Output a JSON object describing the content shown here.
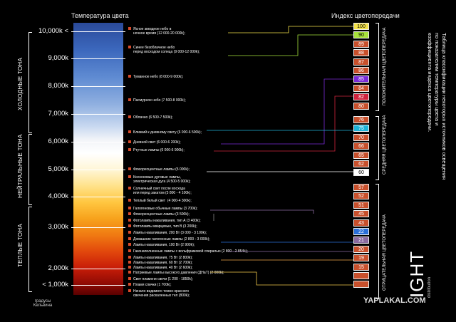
{
  "titles": {
    "temperature": "Температура цвета",
    "cri": "Индекс цветопередачи",
    "kelvin_footer_1": "градусы",
    "kelvin_footer_2": "Кельвина"
  },
  "kelvin_scale": [
    "10,000k <",
    "9,000k",
    "8,000k",
    "7,000k",
    "6,000k",
    "5,000k",
    "4,000k",
    "3,000k",
    "2,000k",
    "< 1,000k"
  ],
  "tones": {
    "cold": "ХОЛОДНЫЕ ТОНА",
    "neutral": "НЕЙТРАЛЬНЫЕ ТОНА",
    "warm": "ТЕПЛЫЕ ТОНА"
  },
  "sources": [
    "Ясное звездное небо в\nночное время (12 000-20 000k);",
    "Синее безоблачное небо\nперед восходом солнца (9 000-12 000k);",
    "Туманное небо (8 000-9 000k);",
    "Пасмурное небо (7 500-8 000k);",
    "Облачно (6 500-7 500k);",
    "Близкий к дневному свету (6 000-6 500k);",
    "Дневной свет (6 000-6 200k);",
    "Ртутные лампы (6 000-6 900k);",
    "Флюоресцентные лампы (5 000k);",
    "Ксеноновые дуговые лампы,\nэлектрическая дуга (4 500-5 000k);",
    "Солнечный свет после восхода\nили перед закатом (3 800 - 4 100k);",
    "Теплый белый свет  (4 000-4 300k);",
    "Галогеновые обычные лампы (3 700k);",
    "Флюоресцентные лампы (3 500k);",
    "Фотолампы накаливания, тип А (3 400k);",
    "Фотолампы кварцевые, тип В (3 200k);",
    "Лампы накаливания, 200 Вт (3 000 - 3 100k);",
    "Домашние галогенные лампы (2 800 - 3 000k);",
    "Лампы накаливания, 100 Вт (2 900k);",
    "Газонаполненные лампы с вольфрамовой спиралью (2 800 - 2 854k);",
    "Лампы накаливания, 75 Вт (2 800k);",
    "Лампы накаливания, 60 Вт (2 700k);",
    "Лампы накаливания, 40 Вт (2 600k);",
    "Натриевые лампы высокого давления (ДНаТ) (2 000k);",
    "Свет пламени свечи (1 200 - 1850k);",
    "Пламя спички (1 700k);",
    "Начало видимого темно-красного\nсвечения раскаленных тел (800k);"
  ],
  "cri_values": [
    "100",
    "90",
    "89",
    "88",
    "87",
    "86",
    "85",
    "84",
    "82",
    "80",
    "76",
    "75",
    "70",
    "66",
    "65",
    "62",
    "60",
    "57",
    "52",
    "51",
    "45",
    "43",
    "22",
    "21",
    "20",
    "19",
    "15",
    "",
    ""
  ],
  "cri_highlights": {
    "100": "#f2e14a",
    "90": "#a7e23b",
    "85": "#7a2bd8",
    "82": "#d1243e",
    "75": "#1fb3d8",
    "60": "#ffffff",
    "22": "#2a6fd8",
    "21": "#8a6aa0"
  },
  "cri_groups": {
    "good": "ПОЛОЖИТЕЛЬНАЯ ЦВЕТОПЕРЕДАЧА",
    "medium": "СРЕДНЯЯ ЦВЕТОПЕРЕДАЧА",
    "bad": "ОТРИЦАТЕЛЬНАЯ ЦВЕТОПЕРЕДАЧА"
  },
  "side_title": [
    "Таблица классификации некоторых источников освещения",
    "по показателям температуры цвета и",
    "коэффициента индекса цветопередачи."
  ],
  "logo": {
    "text": "IGHT",
    "sub": "distribution"
  },
  "watermark": "YAPLAKAL.COM"
}
